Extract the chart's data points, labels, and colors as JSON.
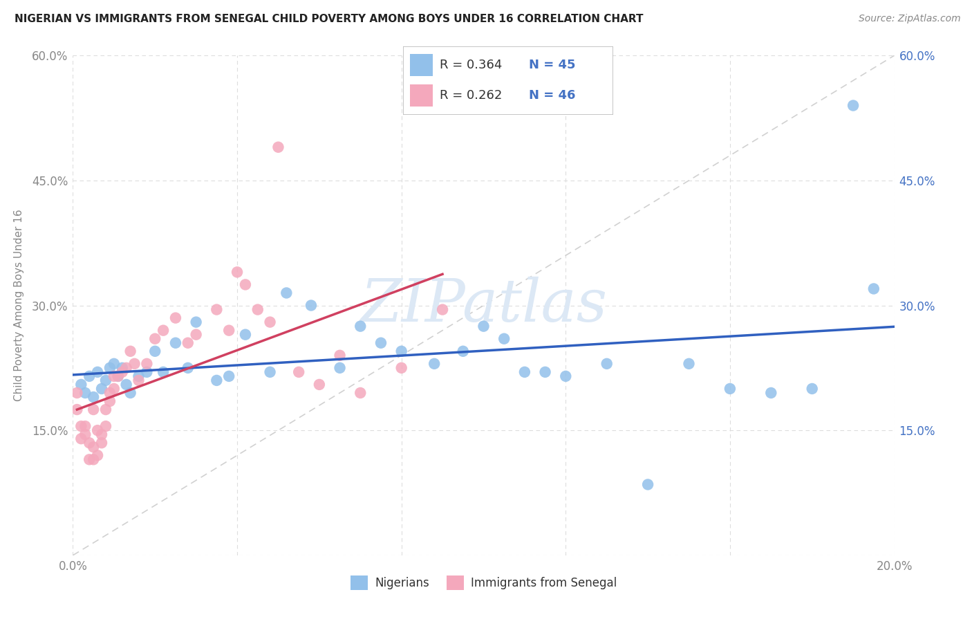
{
  "title": "NIGERIAN VS IMMIGRANTS FROM SENEGAL CHILD POVERTY AMONG BOYS UNDER 16 CORRELATION CHART",
  "source": "Source: ZipAtlas.com",
  "ylabel": "Child Poverty Among Boys Under 16",
  "xlim": [
    0.0,
    0.2
  ],
  "ylim": [
    0.0,
    0.6
  ],
  "color_nigerian": "#92C0EA",
  "color_senegal": "#F4A8BC",
  "color_line_nigerian": "#3060C0",
  "color_line_senegal": "#D04060",
  "color_grid": "#DDDDDD",
  "color_title": "#222222",
  "color_source": "#888888",
  "color_axis_right": "#4472C4",
  "color_axis_left": "#888888",
  "watermark_color": "#DCE8F5",
  "nigerian_x": [
    0.002,
    0.003,
    0.004,
    0.005,
    0.006,
    0.007,
    0.008,
    0.009,
    0.01,
    0.011,
    0.012,
    0.013,
    0.014,
    0.016,
    0.018,
    0.02,
    0.022,
    0.025,
    0.028,
    0.03,
    0.035,
    0.038,
    0.042,
    0.048,
    0.052,
    0.058,
    0.065,
    0.07,
    0.075,
    0.08,
    0.088,
    0.095,
    0.1,
    0.105,
    0.11,
    0.115,
    0.12,
    0.13,
    0.14,
    0.15,
    0.16,
    0.17,
    0.18,
    0.19,
    0.195
  ],
  "nigerian_y": [
    0.205,
    0.195,
    0.215,
    0.19,
    0.22,
    0.2,
    0.21,
    0.225,
    0.23,
    0.215,
    0.225,
    0.205,
    0.195,
    0.215,
    0.22,
    0.245,
    0.22,
    0.255,
    0.225,
    0.28,
    0.21,
    0.215,
    0.265,
    0.22,
    0.315,
    0.3,
    0.225,
    0.275,
    0.255,
    0.245,
    0.23,
    0.245,
    0.275,
    0.26,
    0.22,
    0.22,
    0.215,
    0.23,
    0.085,
    0.23,
    0.2,
    0.195,
    0.2,
    0.54,
    0.32
  ],
  "senegal_x": [
    0.001,
    0.001,
    0.002,
    0.002,
    0.003,
    0.003,
    0.004,
    0.004,
    0.005,
    0.005,
    0.005,
    0.006,
    0.006,
    0.007,
    0.007,
    0.008,
    0.008,
    0.009,
    0.009,
    0.01,
    0.01,
    0.011,
    0.012,
    0.013,
    0.014,
    0.015,
    0.016,
    0.018,
    0.02,
    0.022,
    0.025,
    0.028,
    0.03,
    0.035,
    0.038,
    0.04,
    0.042,
    0.045,
    0.048,
    0.05,
    0.055,
    0.06,
    0.065,
    0.07,
    0.08,
    0.09
  ],
  "senegal_y": [
    0.195,
    0.175,
    0.14,
    0.155,
    0.155,
    0.145,
    0.115,
    0.135,
    0.115,
    0.13,
    0.175,
    0.12,
    0.15,
    0.145,
    0.135,
    0.155,
    0.175,
    0.195,
    0.185,
    0.2,
    0.215,
    0.215,
    0.22,
    0.225,
    0.245,
    0.23,
    0.21,
    0.23,
    0.26,
    0.27,
    0.285,
    0.255,
    0.265,
    0.295,
    0.27,
    0.34,
    0.325,
    0.295,
    0.28,
    0.49,
    0.22,
    0.205,
    0.24,
    0.195,
    0.225,
    0.295
  ]
}
